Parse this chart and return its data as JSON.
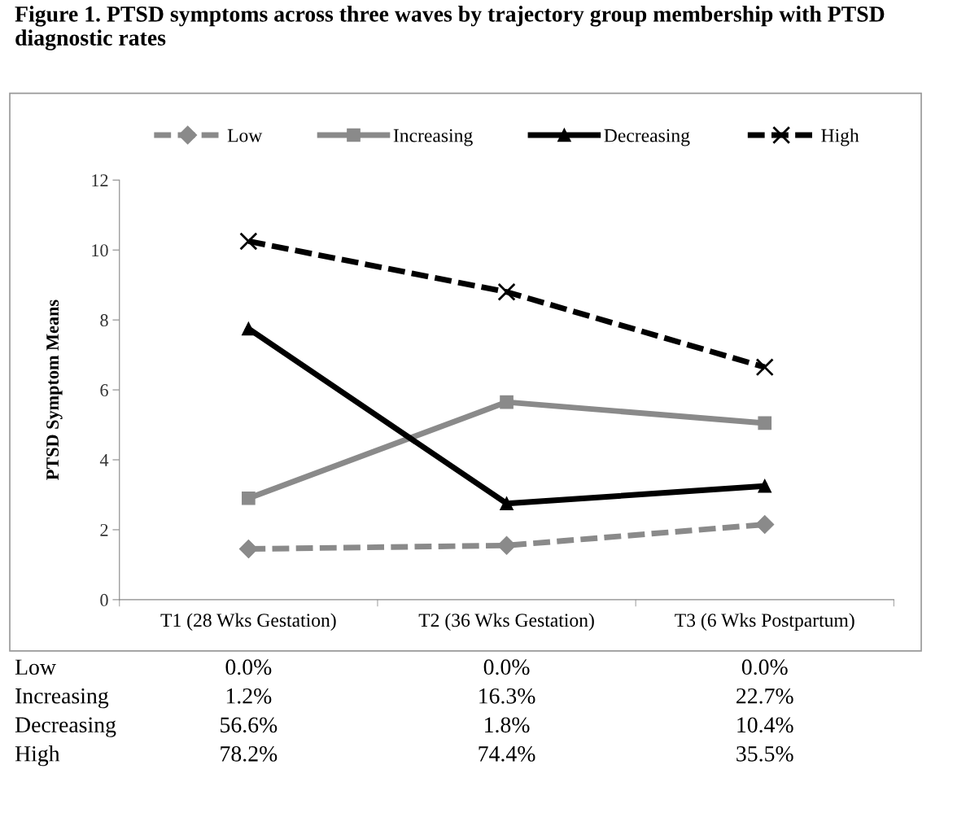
{
  "chart_data": {
    "type": "line",
    "title": "Figure 1. PTSD symptoms across three waves by trajectory group membership with PTSD diagnostic rates",
    "ylabel": "PTSD Symptom Means",
    "categories": [
      "T1 (28 Wks Gestation)",
      "T2 (36 Wks Gestation)",
      "T3 (6 Wks Postpartum)"
    ],
    "series": [
      {
        "name": "Low",
        "color": "#8a8a8a",
        "marker": "diamond",
        "line_style": "dashed",
        "values": [
          1.45,
          1.55,
          2.15
        ]
      },
      {
        "name": "Increasing",
        "color": "#8a8a8a",
        "marker": "square",
        "line_style": "solid",
        "values": [
          2.9,
          5.65,
          5.05
        ]
      },
      {
        "name": "Decreasing",
        "color": "#000000",
        "marker": "triangle",
        "line_style": "solid",
        "values": [
          7.75,
          2.75,
          3.25
        ]
      },
      {
        "name": "High",
        "color": "#000000",
        "marker": "cross",
        "line_style": "dashed",
        "values": [
          10.25,
          8.8,
          6.65
        ]
      }
    ],
    "ylim": [
      0,
      12
    ],
    "yticks": [
      0,
      2,
      4,
      6,
      8,
      10,
      12
    ],
    "grid": false,
    "legend": "top",
    "annotations": [
      "Low",
      "0.0%",
      "0.0%",
      "0.0%",
      "Increasing",
      "1.2%",
      "16.3%",
      "22.7%",
      "Decreasing",
      "56.6%",
      "1.8%",
      "10.4%",
      "High",
      "78.2%",
      "74.4%",
      "35.5%"
    ]
  }
}
